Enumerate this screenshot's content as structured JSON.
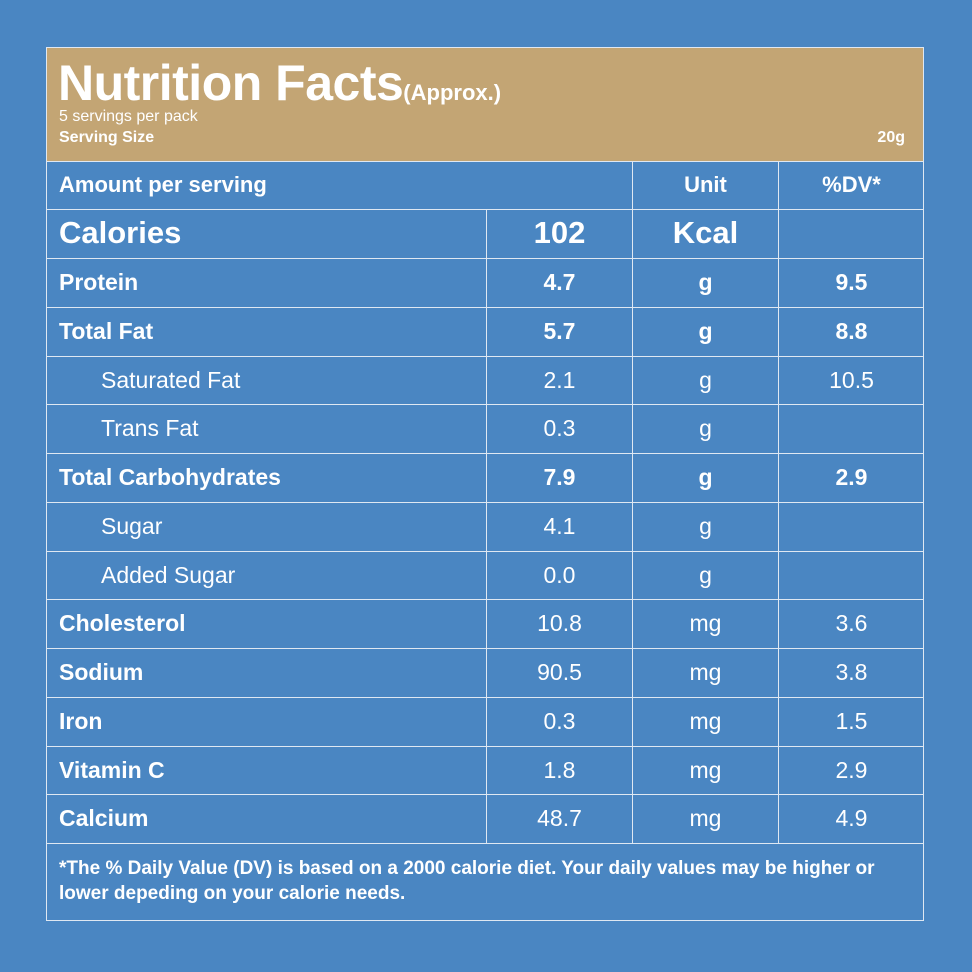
{
  "header": {
    "title": "Nutrition Facts",
    "title_suffix": "(Approx.)",
    "servings_per_pack": "5 servings per pack",
    "serving_size_label": "Serving Size",
    "serving_size_value": "20g"
  },
  "table_head": {
    "amount_label": "Amount per serving",
    "unit_label": "Unit",
    "dv_label": "%DV*"
  },
  "calories": {
    "name": "Calories",
    "value": "102",
    "unit": "Kcal",
    "dv": ""
  },
  "rows": [
    {
      "name": "Protein",
      "value": "4.7",
      "unit": "g",
      "dv": "9.5"
    },
    {
      "name": "Total Fat",
      "value": "5.7",
      "unit": "g",
      "dv": "8.8"
    },
    {
      "name": "Saturated Fat",
      "value": "2.1",
      "unit": "g",
      "dv": "10.5"
    },
    {
      "name": "Trans Fat",
      "value": "0.3",
      "unit": "g",
      "dv": ""
    },
    {
      "name": "Total Carbohydrates",
      "value": "7.9",
      "unit": "g",
      "dv": "2.9"
    },
    {
      "name": "Sugar",
      "value": "4.1",
      "unit": "g",
      "dv": ""
    },
    {
      "name": "Added Sugar",
      "value": "0.0",
      "unit": "g",
      "dv": ""
    },
    {
      "name": "Cholesterol",
      "value": "10.8",
      "unit": "mg",
      "dv": "3.6"
    },
    {
      "name": "Sodium",
      "value": "90.5",
      "unit": "mg",
      "dv": "3.8"
    },
    {
      "name": "Iron",
      "value": "0.3",
      "unit": "mg",
      "dv": "1.5"
    },
    {
      "name": "Vitamin C",
      "value": "1.8",
      "unit": "mg",
      "dv": "2.9"
    },
    {
      "name": "Calcium",
      "value": "48.7",
      "unit": "mg",
      "dv": "4.9"
    }
  ],
  "footnote": "*The % Daily Value (DV) is based on a 2000 calorie diet. Your daily values may be higher or lower depeding on your calorie needs.",
  "colors": {
    "background": "#4a86c2",
    "header": "#c3a574",
    "lines": "#dfe8f2",
    "text": "#ffffff"
  }
}
